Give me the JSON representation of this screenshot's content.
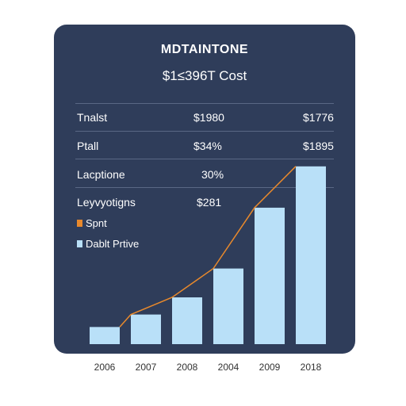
{
  "title": "MDTAINTONE",
  "subtitle": "$1≤396T Cost",
  "table": {
    "rows": [
      {
        "label": "Tnalst",
        "value1": "$1980",
        "value2": "$1776"
      },
      {
        "label": "Ptall",
        "value1": "$34%",
        "value2": "$1895"
      },
      {
        "label": "Lacptione",
        "value1": "30%",
        "value2": ""
      },
      {
        "label": "Leyvyotigns",
        "value1": "$281",
        "value2": ""
      }
    ]
  },
  "legend": [
    {
      "label": "Spnt",
      "color": "#e8892c"
    },
    {
      "label": "Dablt Prtive",
      "color": "#b9e0f8"
    }
  ],
  "colors": {
    "background": "#ffffff",
    "card": "#2f3d5a",
    "bar": "#b9e0f8",
    "line": "#e8892c"
  },
  "chart_data": {
    "type": "bar",
    "categories": [
      "2006",
      "2007",
      "2008",
      "2004",
      "2009",
      "2018"
    ],
    "series": [
      {
        "name": "Dablt Prtive",
        "type": "bar",
        "values": [
          22,
          38,
          60,
          97,
          175,
          228
        ]
      },
      {
        "name": "Spnt",
        "type": "line",
        "values": [
          22,
          38,
          60,
          97,
          175,
          228
        ]
      }
    ],
    "ylim": [
      0,
      240
    ],
    "grid": false,
    "title": "MDTAINTONE",
    "subtitle": "$1≤396T Cost"
  }
}
